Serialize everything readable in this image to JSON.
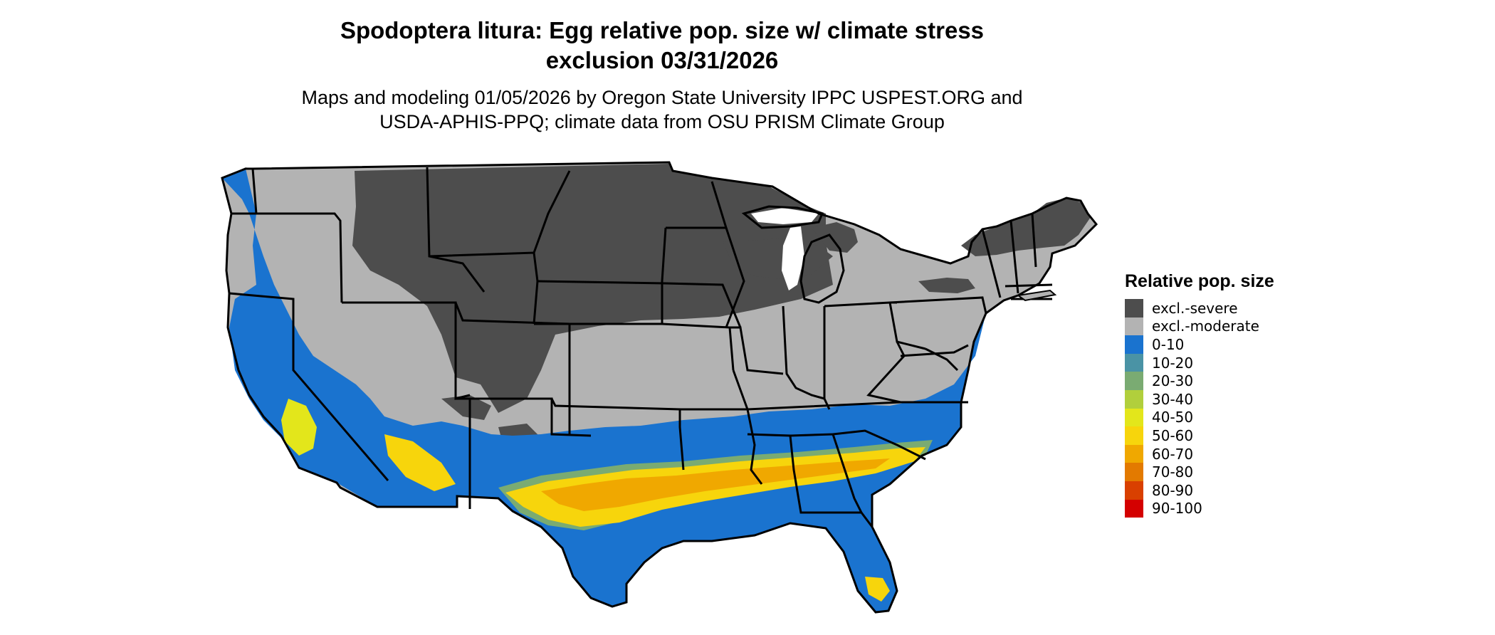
{
  "title_line1": "Spodoptera litura: Egg relative pop. size w/ climate stress",
  "title_line2": "exclusion 03/31/2026",
  "subtitle_line1": "Maps and modeling 01/05/2026 by Oregon State University IPPC USPEST.ORG and",
  "subtitle_line2": "USDA-APHIS-PPQ; climate data from OSU PRISM Climate Group",
  "legend": {
    "title": "Relative pop. size",
    "items": [
      {
        "label": "excl.-severe",
        "color": "#4d4d4d"
      },
      {
        "label": "excl.-moderate",
        "color": "#b3b3b3"
      },
      {
        "label": "0-10",
        "color": "#1a73cf"
      },
      {
        "label": "10-20",
        "color": "#4a93a5"
      },
      {
        "label": "20-30",
        "color": "#7aab72"
      },
      {
        "label": "30-40",
        "color": "#b1cf3c"
      },
      {
        "label": "40-50",
        "color": "#e3e61b"
      },
      {
        "label": "50-60",
        "color": "#f7d50c"
      },
      {
        "label": "60-70",
        "color": "#f0a800"
      },
      {
        "label": "70-80",
        "color": "#e37a00"
      },
      {
        "label": "80-90",
        "color": "#d94000"
      },
      {
        "label": "90-100",
        "color": "#d40000"
      }
    ]
  }
}
